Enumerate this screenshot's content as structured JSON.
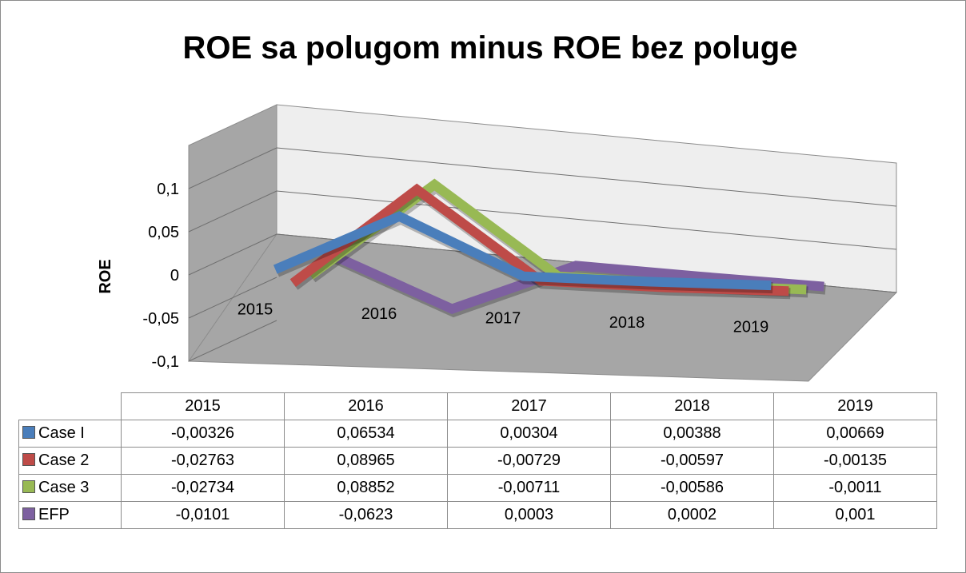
{
  "chart_data": {
    "type": "line",
    "title": "ROE sa polugom minus ROE bez poluge",
    "y_label": "ROE",
    "categories": [
      "2015",
      "2016",
      "2017",
      "2018",
      "2019"
    ],
    "ylim": [
      -0.1,
      0.15
    ],
    "yticks": [
      {
        "value": -0.1,
        "label": "-0,1"
      },
      {
        "value": -0.05,
        "label": "-0,05"
      },
      0,
      {
        "value": 0.05,
        "label": "0,05"
      },
      {
        "value": 0.1,
        "label": "0,1"
      }
    ],
    "grid": true,
    "series": [
      {
        "name": "Case I",
        "color": "#4a7ebb",
        "values": [
          -0.00326,
          0.06534,
          0.00304,
          0.00388,
          0.00669
        ],
        "value_labels": [
          "-0,00326",
          "0,06534",
          "0,00304",
          "0,00388",
          "0,00669"
        ]
      },
      {
        "name": "Case 2",
        "color": "#be4b48",
        "values": [
          -0.02763,
          0.08965,
          -0.00729,
          -0.00597,
          -0.00135
        ],
        "value_labels": [
          "-0,02763",
          "0,08965",
          "-0,00729",
          "-0,00597",
          "-0,00135"
        ]
      },
      {
        "name": "Case 3",
        "color": "#98b954",
        "values": [
          -0.02734,
          0.08852,
          -0.00711,
          -0.00586,
          -0.0011
        ],
        "value_labels": [
          "-0,02734",
          "0,08852",
          "-0,00711",
          "-0,00586",
          "-0,0011"
        ]
      },
      {
        "name": "EFP",
        "color": "#7d60a0",
        "values": [
          -0.0101,
          -0.0623,
          0.0003,
          0.0002,
          0.001
        ],
        "value_labels": [
          "-0,0101",
          "-0,0623",
          "0,0003",
          "0,0002",
          "0,001"
        ]
      }
    ]
  }
}
